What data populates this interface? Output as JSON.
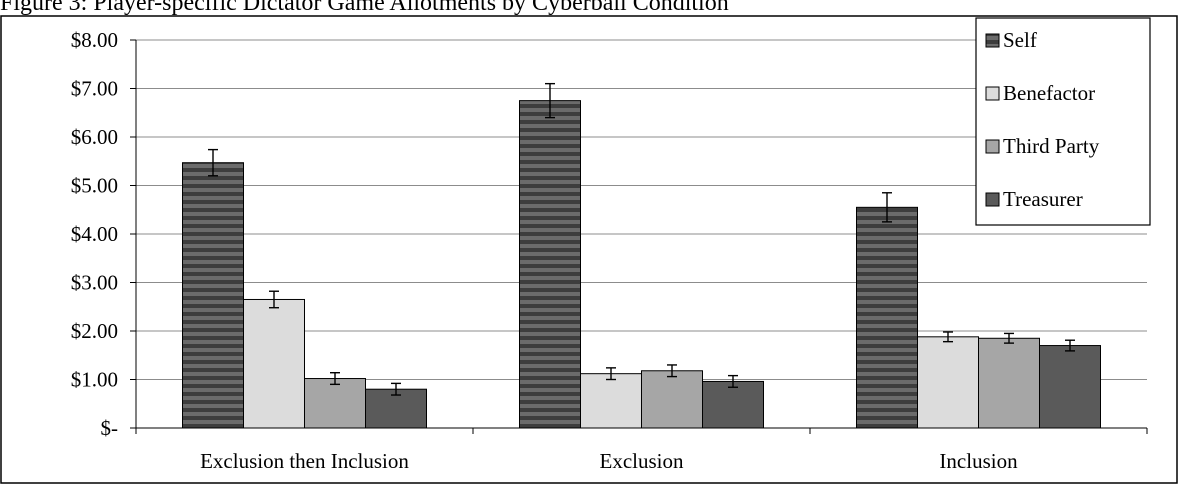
{
  "chart_data": {
    "type": "bar",
    "title": "Figure 3: Player-specific Dictator Game Allotments by Cyberball Condition",
    "xlabel": "",
    "ylabel": "",
    "categories": [
      "Exclusion then Inclusion",
      "Exclusion",
      "Inclusion"
    ],
    "y_tick_labels": [
      "$-",
      "$1.00",
      "$2.00",
      "$3.00",
      "$4.00",
      "$5.00",
      "$6.00",
      "$7.00",
      "$8.00"
    ],
    "ylim": [
      0,
      8
    ],
    "grid": "horizontal",
    "legend_position": "top-right",
    "error_bars": true,
    "series": [
      {
        "name": "Self",
        "color": "#3d3d3d",
        "pattern": "horizontal-stripes",
        "values": [
          5.47,
          6.75,
          4.55
        ],
        "errors": [
          0.27,
          0.35,
          0.3
        ]
      },
      {
        "name": "Benefactor",
        "color": "#dcdcdc",
        "values": [
          2.65,
          1.12,
          1.88
        ],
        "errors": [
          0.17,
          0.12,
          0.1
        ]
      },
      {
        "name": "Third Party",
        "color": "#a6a6a6",
        "values": [
          1.02,
          1.18,
          1.85
        ],
        "errors": [
          0.12,
          0.12,
          0.1
        ]
      },
      {
        "name": "Treasurer",
        "color": "#5a5a5a",
        "values": [
          0.8,
          0.96,
          1.7
        ],
        "errors": [
          0.12,
          0.12,
          0.11
        ]
      }
    ]
  }
}
